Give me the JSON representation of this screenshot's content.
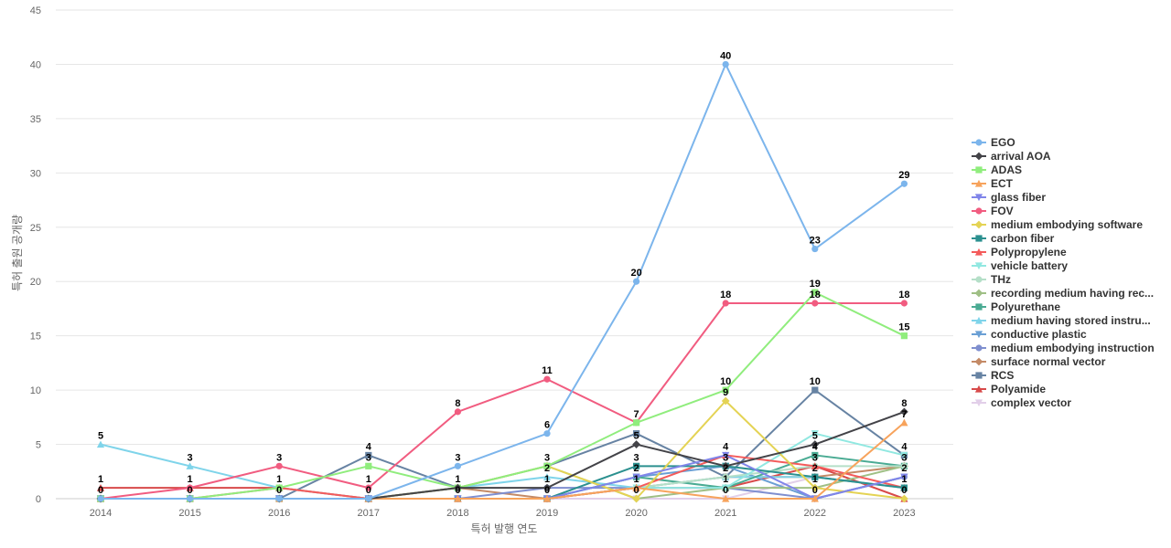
{
  "chart_data": {
    "type": "line",
    "xlabel": "특허 발행 연도",
    "ylabel": "특허 출원 공개량",
    "x": [
      2014,
      2015,
      2016,
      2017,
      2018,
      2019,
      2020,
      2021,
      2022,
      2023
    ],
    "ylim": [
      0,
      45
    ],
    "yticks": [
      0,
      5,
      10,
      15,
      20,
      25,
      30,
      35,
      40,
      45
    ],
    "grid": true,
    "legend_position": "right",
    "series": [
      {
        "name": "EGO",
        "color": "#7cb5ec",
        "marker": "circle",
        "values": [
          0,
          0,
          0,
          0,
          3,
          6,
          20,
          40,
          23,
          29
        ]
      },
      {
        "name": "arrival AOA",
        "color": "#434348",
        "marker": "diamond",
        "values": [
          0,
          0,
          0,
          0,
          1,
          1,
          5,
          3,
          5,
          8
        ]
      },
      {
        "name": "ADAS",
        "color": "#90ed7d",
        "marker": "square",
        "values": [
          0,
          0,
          1,
          3,
          1,
          3,
          7,
          10,
          19,
          15
        ]
      },
      {
        "name": "ECT",
        "color": "#f7a35c",
        "marker": "triangle",
        "values": [
          0,
          0,
          0,
          0,
          0,
          0,
          1,
          0,
          0,
          7
        ]
      },
      {
        "name": "glass fiber",
        "color": "#8085e9",
        "marker": "triangle-down",
        "values": [
          0,
          0,
          0,
          0,
          0,
          0,
          2,
          4,
          0,
          2
        ]
      },
      {
        "name": "FOV",
        "color": "#f15c80",
        "marker": "circle",
        "values": [
          0,
          1,
          3,
          1,
          8,
          11,
          7,
          18,
          18,
          18
        ]
      },
      {
        "name": "medium embodying software",
        "color": "#e4d354",
        "marker": "diamond",
        "values": [
          0,
          0,
          0,
          0,
          1,
          3,
          0,
          9,
          1,
          0
        ]
      },
      {
        "name": "carbon fiber",
        "color": "#2b908f",
        "marker": "square",
        "values": [
          0,
          0,
          0,
          0,
          0,
          0,
          3,
          3,
          2,
          1
        ]
      },
      {
        "name": "Polypropylene",
        "color": "#f45b5b",
        "marker": "triangle",
        "values": [
          0,
          0,
          1,
          0,
          0,
          0,
          1,
          4,
          3,
          1
        ]
      },
      {
        "name": "vehicle battery",
        "color": "#91e8e1",
        "marker": "triangle-down",
        "values": [
          0,
          0,
          0,
          0,
          0,
          0,
          1,
          1,
          6,
          4
        ]
      },
      {
        "name": "THz",
        "color": "#b5dfc8",
        "marker": "circle",
        "values": [
          0,
          0,
          0,
          0,
          0,
          0,
          1,
          2,
          3,
          3
        ]
      },
      {
        "name": "recording medium having rec...",
        "color": "#9fbf85",
        "marker": "diamond",
        "values": [
          0,
          0,
          0,
          0,
          1,
          3,
          0,
          1,
          1,
          3
        ]
      },
      {
        "name": "Polyurethane",
        "color": "#4aab93",
        "marker": "square",
        "values": [
          0,
          0,
          0,
          0,
          0,
          0,
          2,
          1,
          4,
          3
        ]
      },
      {
        "name": "medium having stored instru...",
        "color": "#7fd4ea",
        "marker": "triangle",
        "values": [
          5,
          3,
          1,
          0,
          1,
          2,
          1,
          2,
          2,
          1
        ]
      },
      {
        "name": "conductive plastic",
        "color": "#6a9fd4",
        "marker": "triangle-down",
        "values": [
          0,
          0,
          0,
          0,
          0,
          0,
          2,
          3,
          0,
          2
        ]
      },
      {
        "name": "medium embodying instruction",
        "color": "#7f8fcf",
        "marker": "circle",
        "values": [
          0,
          0,
          0,
          0,
          0,
          1,
          1,
          1,
          0,
          2
        ]
      },
      {
        "name": "surface normal vector",
        "color": "#c48a66",
        "marker": "diamond",
        "values": [
          0,
          0,
          0,
          0,
          1,
          0,
          1,
          2,
          2,
          3
        ]
      },
      {
        "name": "RCS",
        "color": "#6783a3",
        "marker": "square",
        "values": [
          0,
          0,
          0,
          4,
          1,
          3,
          6,
          2,
          10,
          4
        ]
      },
      {
        "name": "Polyamide",
        "color": "#d84a4a",
        "marker": "triangle",
        "values": [
          1,
          1,
          1,
          0,
          0,
          0,
          1,
          1,
          3,
          0
        ]
      },
      {
        "name": "complex vector",
        "color": "#e2cfe9",
        "marker": "triangle-down",
        "values": [
          0,
          0,
          0,
          0,
          0,
          0,
          0,
          0,
          2,
          1
        ]
      }
    ],
    "data_labels": [
      {
        "x": 2014,
        "value": 5
      },
      {
        "x": 2014,
        "value": 1
      },
      {
        "x": 2014,
        "value": 0
      },
      {
        "x": 2015,
        "value": 3
      },
      {
        "x": 2015,
        "value": 1
      },
      {
        "x": 2015,
        "value": 0
      },
      {
        "x": 2016,
        "value": 3
      },
      {
        "x": 2016,
        "value": 1
      },
      {
        "x": 2016,
        "value": 0
      },
      {
        "x": 2017,
        "value": 4
      },
      {
        "x": 2017,
        "value": 3
      },
      {
        "x": 2017,
        "value": 1
      },
      {
        "x": 2017,
        "value": 0
      },
      {
        "x": 2018,
        "value": 8
      },
      {
        "x": 2018,
        "value": 3
      },
      {
        "x": 2018,
        "value": 1
      },
      {
        "x": 2018,
        "value": 0
      },
      {
        "x": 2019,
        "value": 11
      },
      {
        "x": 2019,
        "value": 6
      },
      {
        "x": 2019,
        "value": 3
      },
      {
        "x": 2019,
        "value": 2
      },
      {
        "x": 2019,
        "value": 1
      },
      {
        "x": 2019,
        "value": 0
      },
      {
        "x": 2020,
        "value": 20
      },
      {
        "x": 2020,
        "value": 7
      },
      {
        "x": 2020,
        "value": 5
      },
      {
        "x": 2020,
        "value": 3
      },
      {
        "x": 2020,
        "value": 2
      },
      {
        "x": 2020,
        "value": 1
      },
      {
        "x": 2020,
        "value": 0
      },
      {
        "x": 2021,
        "value": 40
      },
      {
        "x": 2021,
        "value": 18
      },
      {
        "x": 2021,
        "value": 10
      },
      {
        "x": 2021,
        "value": 9
      },
      {
        "x": 2021,
        "value": 4
      },
      {
        "x": 2021,
        "value": 3
      },
      {
        "x": 2021,
        "value": 2
      },
      {
        "x": 2021,
        "value": 1
      },
      {
        "x": 2021,
        "value": 0
      },
      {
        "x": 2022,
        "value": 23
      },
      {
        "x": 2022,
        "value": 19
      },
      {
        "x": 2022,
        "value": 18
      },
      {
        "x": 2022,
        "value": 10
      },
      {
        "x": 2022,
        "value": 5
      },
      {
        "x": 2022,
        "value": 4
      },
      {
        "x": 2022,
        "value": 3
      },
      {
        "x": 2022,
        "value": 2
      },
      {
        "x": 2022,
        "value": 1
      },
      {
        "x": 2022,
        "value": 0
      },
      {
        "x": 2023,
        "value": 29
      },
      {
        "x": 2023,
        "value": 18
      },
      {
        "x": 2023,
        "value": 15
      },
      {
        "x": 2023,
        "value": 8
      },
      {
        "x": 2023,
        "value": 7
      },
      {
        "x": 2023,
        "value": 4
      },
      {
        "x": 2023,
        "value": 3
      },
      {
        "x": 2023,
        "value": 2
      },
      {
        "x": 2023,
        "value": 1
      },
      {
        "x": 2023,
        "value": 0
      }
    ]
  }
}
